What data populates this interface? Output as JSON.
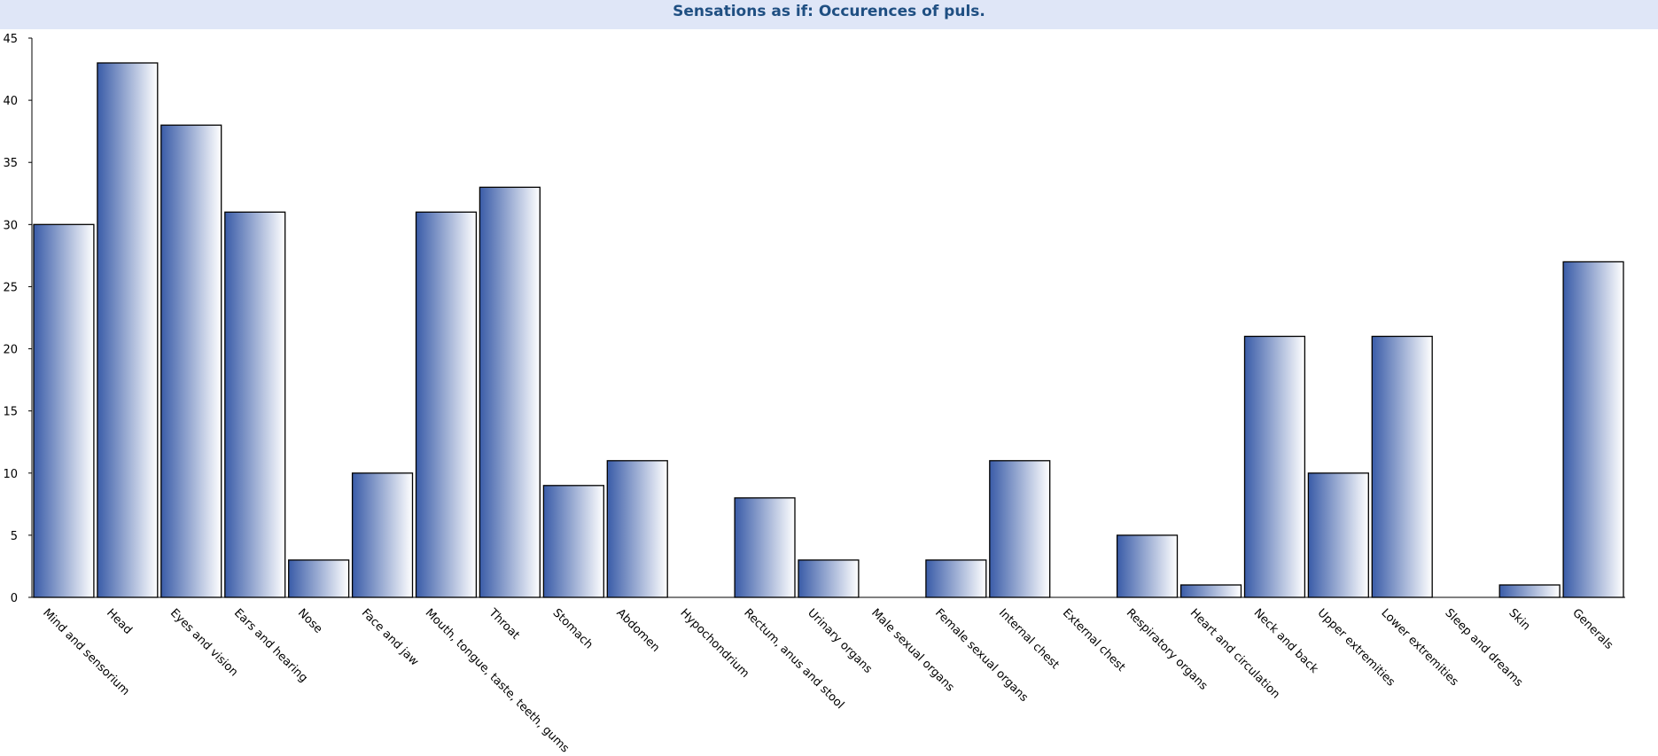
{
  "chart_data": {
    "type": "bar",
    "title": "Sensations as if: Occurences of puls.",
    "categories": [
      "Mind and sensorium",
      "Head",
      "Eyes and vision",
      "Ears and hearing",
      "Nose",
      "Face and jaw",
      "Mouth, tongue, taste, teeth, gums",
      "Throat",
      "Stomach",
      "Abdomen",
      "Hypochondrium",
      "Rectum, anus and stool",
      "Urinary organs",
      "Male sexual organs",
      "Female sexual organs",
      "Internal chest",
      "External chest",
      "Respiratory organs",
      "Heart and circulation",
      "Neck and back",
      "Upper extremities",
      "Lower extremities",
      "Sleep and dreams",
      "Skin",
      "Generals"
    ],
    "values": [
      30,
      43,
      38,
      31,
      3,
      10,
      31,
      33,
      9,
      11,
      0,
      8,
      3,
      0,
      3,
      11,
      0,
      5,
      1,
      21,
      10,
      21,
      0,
      1,
      27
    ],
    "yticks": [
      "0",
      "5",
      "10",
      "15",
      "20",
      "25",
      "30",
      "35",
      "40",
      "45"
    ],
    "ylim": [
      0,
      45
    ],
    "grid": false,
    "legend": "none",
    "colors": {
      "bar_dark": "#3a5ca8",
      "bar_light": "#ffffff",
      "bar_border": "#000000",
      "title": "#1f4f82",
      "header_bg": "#dfe6f7"
    }
  }
}
